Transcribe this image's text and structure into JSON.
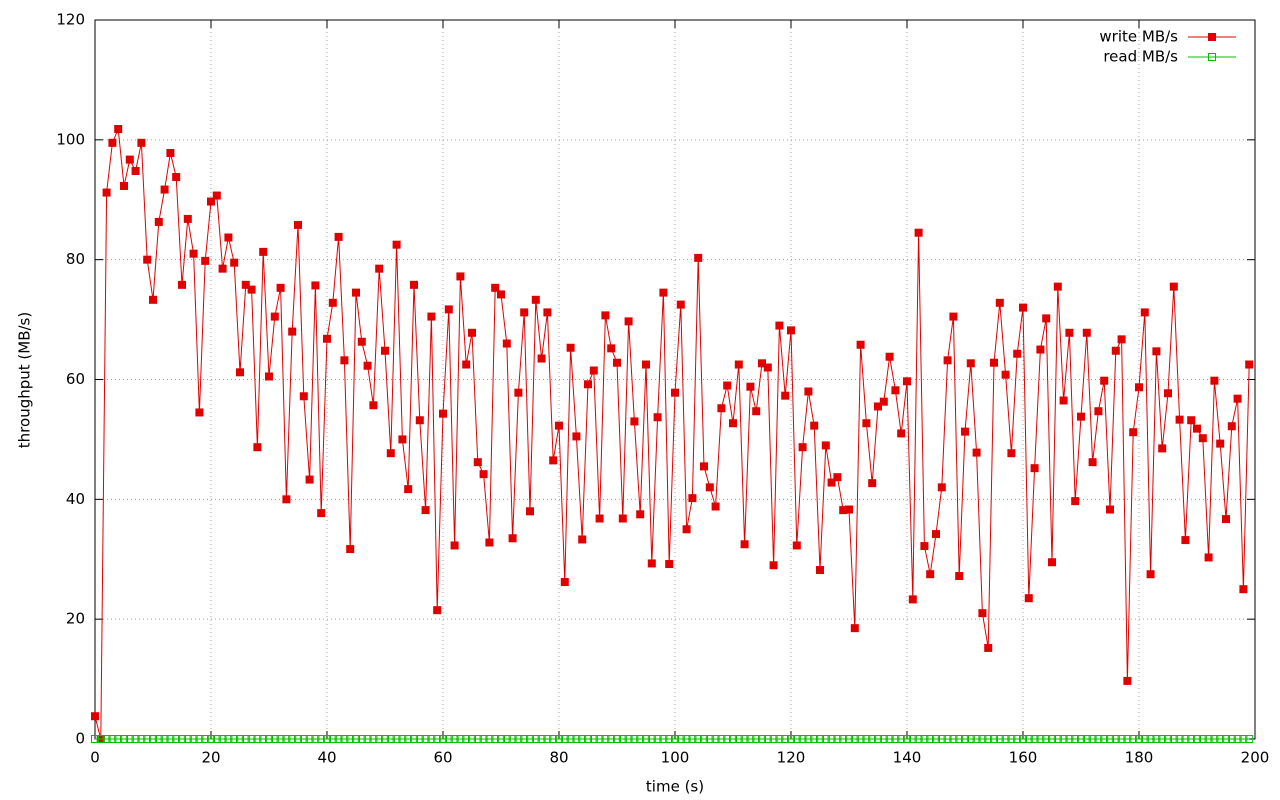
{
  "chart_data": {
    "type": "line",
    "x_label": "time (s)",
    "y_label": "throughput (MB/s)",
    "x": [
      0,
      1,
      2,
      3,
      4,
      5,
      6,
      7,
      8,
      9,
      10,
      11,
      12,
      13,
      14,
      15,
      16,
      17,
      18,
      19,
      20,
      21,
      22,
      23,
      24,
      25,
      26,
      27,
      28,
      29,
      30,
      31,
      32,
      33,
      34,
      35,
      36,
      37,
      38,
      39,
      40,
      41,
      42,
      43,
      44,
      45,
      46,
      47,
      48,
      49,
      50,
      51,
      52,
      53,
      54,
      55,
      56,
      57,
      58,
      59,
      60,
      61,
      62,
      63,
      64,
      65,
      66,
      67,
      68,
      69,
      70,
      71,
      72,
      73,
      74,
      75,
      76,
      77,
      78,
      79,
      80,
      81,
      82,
      83,
      84,
      85,
      86,
      87,
      88,
      89,
      90,
      91,
      92,
      93,
      94,
      95,
      96,
      97,
      98,
      99,
      100,
      101,
      102,
      103,
      104,
      105,
      106,
      107,
      108,
      109,
      110,
      111,
      112,
      113,
      114,
      115,
      116,
      117,
      118,
      119,
      120,
      121,
      122,
      123,
      124,
      125,
      126,
      127,
      128,
      129,
      130,
      131,
      132,
      133,
      134,
      135,
      136,
      137,
      138,
      139,
      140,
      141,
      142,
      143,
      144,
      145,
      146,
      147,
      148,
      149,
      150,
      151,
      152,
      153,
      154,
      155,
      156,
      157,
      158,
      159,
      160,
      161,
      162,
      163,
      164,
      165,
      166,
      167,
      168,
      169,
      170,
      171,
      172,
      173,
      174,
      175,
      176,
      177,
      178,
      179,
      180,
      181,
      182,
      183,
      184,
      185,
      186,
      187,
      188,
      189,
      190,
      191,
      192,
      193,
      194,
      195,
      196,
      197,
      198,
      199
    ],
    "series": [
      {
        "name": "write MB/s",
        "color": "#e00000",
        "marker": "filled-square",
        "values": [
          3.8,
          0,
          91.2,
          99.5,
          101.8,
          92.3,
          96.7,
          94.8,
          99.5,
          80,
          73.3,
          86.3,
          91.7,
          97.8,
          93.8,
          75.8,
          86.8,
          81,
          54.5,
          79.8,
          89.7,
          90.7,
          78.5,
          83.7,
          79.5,
          61.2,
          75.8,
          75,
          48.7,
          81.3,
          60.5,
          70.5,
          75.3,
          40,
          68,
          85.8,
          57.2,
          43.3,
          75.7,
          37.7,
          66.8,
          72.8,
          83.8,
          63.2,
          31.7,
          74.5,
          66.3,
          62.3,
          55.7,
          78.5,
          64.8,
          47.7,
          82.5,
          50,
          41.7,
          75.8,
          53.2,
          38.2,
          70.5,
          21.5,
          54.3,
          71.7,
          32.3,
          77.2,
          62.5,
          67.8,
          46.2,
          44.2,
          32.8,
          75.3,
          74.2,
          66,
          33.5,
          57.8,
          71.2,
          38,
          73.3,
          63.5,
          71.2,
          46.5,
          52.3,
          26.2,
          65.3,
          50.5,
          33.3,
          59.2,
          61.5,
          36.8,
          70.7,
          65.2,
          62.8,
          36.8,
          69.7,
          53,
          37.5,
          62.5,
          29.3,
          53.7,
          74.5,
          29.2,
          57.8,
          72.5,
          35,
          40.2,
          80.3,
          45.5,
          42,
          38.8,
          55.2,
          59,
          52.7,
          62.5,
          32.5,
          58.8,
          54.7,
          62.7,
          62,
          29,
          69,
          57.3,
          68.2,
          32.3,
          48.7,
          58,
          52.3,
          28.2,
          49,
          42.8,
          43.7,
          38.2,
          38.3,
          18.5,
          65.8,
          52.7,
          42.7,
          55.5,
          56.3,
          63.8,
          58.2,
          51,
          59.7,
          23.3,
          84.5,
          32.2,
          27.5,
          34.2,
          42,
          63.2,
          70.5,
          27.2,
          51.3,
          62.7,
          47.8,
          21,
          15.2,
          62.8,
          72.8,
          60.8,
          47.7,
          64.3,
          72,
          23.5,
          45.2,
          65,
          70.2,
          29.5,
          75.5,
          56.5,
          67.8,
          39.7,
          53.8,
          67.8,
          46.2,
          54.7,
          59.8,
          38.3,
          64.8,
          66.7,
          9.7,
          51.2,
          58.7,
          71.2,
          27.5,
          64.7,
          48.5,
          57.7,
          75.5,
          53.3,
          33.2,
          53.2,
          51.8,
          50.2,
          30.3,
          59.8,
          49.3,
          36.7,
          52.2,
          56.8,
          25,
          62.5
        ]
      },
      {
        "name": "read MB/s",
        "color": "#00c000",
        "marker": "open-square",
        "values": [
          0,
          0,
          0,
          0,
          0,
          0,
          0,
          0,
          0,
          0,
          0,
          0,
          0,
          0,
          0,
          0,
          0,
          0,
          0,
          0,
          0,
          0,
          0,
          0,
          0,
          0,
          0,
          0,
          0,
          0,
          0,
          0,
          0,
          0,
          0,
          0,
          0,
          0,
          0,
          0,
          0,
          0,
          0,
          0,
          0,
          0,
          0,
          0,
          0,
          0,
          0,
          0,
          0,
          0,
          0,
          0,
          0,
          0,
          0,
          0,
          0,
          0,
          0,
          0,
          0,
          0,
          0,
          0,
          0,
          0,
          0,
          0,
          0,
          0,
          0,
          0,
          0,
          0,
          0,
          0,
          0,
          0,
          0,
          0,
          0,
          0,
          0,
          0,
          0,
          0,
          0,
          0,
          0,
          0,
          0,
          0,
          0,
          0,
          0,
          0,
          0,
          0,
          0,
          0,
          0,
          0,
          0,
          0,
          0,
          0,
          0,
          0,
          0,
          0,
          0,
          0,
          0,
          0,
          0,
          0,
          0,
          0,
          0,
          0,
          0,
          0,
          0,
          0,
          0,
          0,
          0,
          0,
          0,
          0,
          0,
          0,
          0,
          0,
          0,
          0,
          0,
          0,
          0,
          0,
          0,
          0,
          0,
          0,
          0,
          0,
          0,
          0,
          0,
          0,
          0,
          0,
          0,
          0,
          0,
          0,
          0,
          0,
          0,
          0,
          0,
          0,
          0,
          0,
          0,
          0,
          0,
          0,
          0,
          0,
          0,
          0,
          0,
          0,
          0,
          0,
          0,
          0,
          0,
          0,
          0,
          0,
          0,
          0,
          0,
          0,
          0,
          0,
          0,
          0,
          0,
          0,
          0,
          0,
          0,
          0
        ]
      }
    ],
    "xlim": [
      0,
      200
    ],
    "xticks": [
      0,
      20,
      40,
      60,
      80,
      100,
      120,
      140,
      160,
      180,
      200
    ],
    "ylim": [
      0,
      120
    ],
    "yticks": [
      0,
      20,
      40,
      60,
      80,
      100,
      120
    ],
    "grid": true,
    "legend": "top-right"
  }
}
